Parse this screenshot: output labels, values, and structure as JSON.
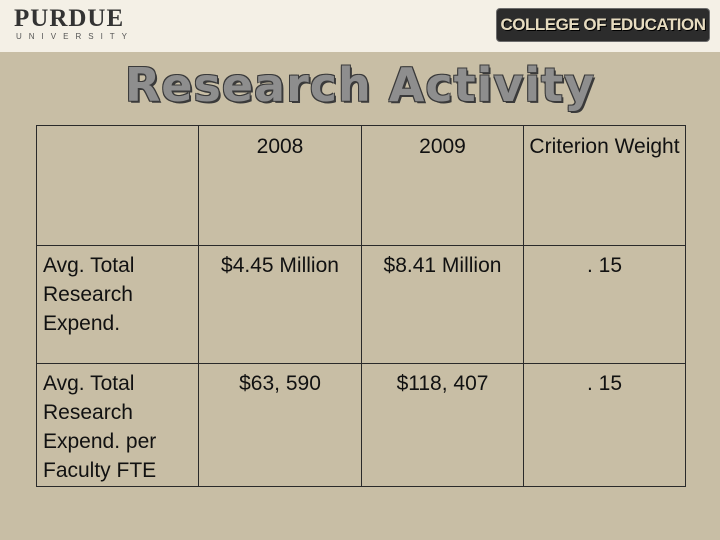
{
  "header": {
    "left_logo": {
      "word": "PURDUE",
      "sub": "UNIVERSITY"
    },
    "right_logo": {
      "text": "COLLEGE OF EDUCATION"
    }
  },
  "title": "Research Activity",
  "table": {
    "columns": [
      "",
      "2008",
      "2009",
      "Criterion Weight"
    ],
    "rows": [
      {
        "label": "Avg. Total Research Expend.",
        "values": [
          "$4.45 Million",
          "$8.41 Million",
          ". 15"
        ]
      },
      {
        "label": "Avg. Total Research Expend. per Faculty FTE",
        "values": [
          "$63, 590",
          "$118, 407",
          ". 15"
        ]
      }
    ]
  },
  "colors": {
    "background": "#c8bea5",
    "title": "#8e8e8e",
    "grid": "#2a2a2a"
  }
}
